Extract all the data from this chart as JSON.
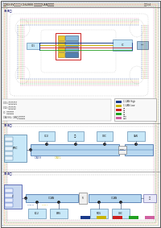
{
  "title": "起亚K3 EV维修指南 C162800 与仪表盘的CAN通信故障",
  "page_label": "图例1/4",
  "bg_color": "#ffffff",
  "section1_label": "①-①图",
  "section2_label": "①-②图",
  "section3_label": "①-③图",
  "legend_items": [
    {
      "color": "#1a3a8a",
      "label": "C-CAN High"
    },
    {
      "color": "#c8b400",
      "label": "C-CAN Low"
    },
    {
      "color": "#cc2020",
      "label": "电源"
    },
    {
      "color": "#20a020",
      "label": "搭铁"
    },
    {
      "color": "#d060a0",
      "label": "信号线"
    }
  ],
  "comp_fill": "#c8e8f8",
  "comp_border": "#4878a0",
  "can_high": "#1a3a8a",
  "can_low": "#c8b400",
  "pwr_red": "#cc2020",
  "gnd_green": "#20a020",
  "sig_pink": "#d060a0",
  "yellow_fill": "#e8c830",
  "yellow_border": "#a08010",
  "blue_fill": "#8ab0d0",
  "bus_fill": "#b8d8f0",
  "bus_border": "#3060a0"
}
